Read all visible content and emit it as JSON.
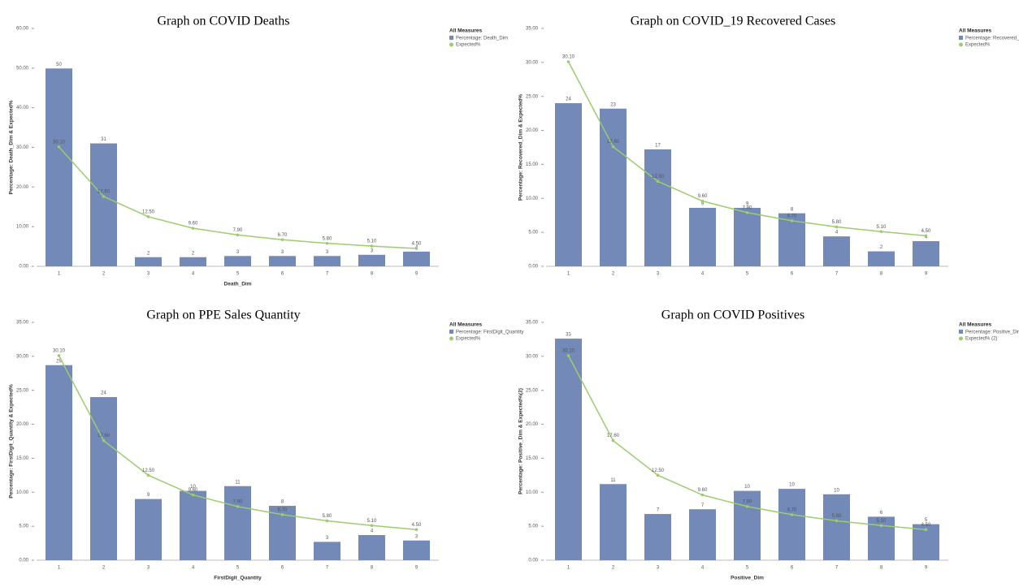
{
  "chart_data": [
    {
      "type": "combo",
      "title": "Graph on COVID Deaths",
      "x_label": "Death_Dim",
      "y_label": "Percentage: Death_Dim & Expected%",
      "legend_title": "All Measures",
      "categories": [
        "1",
        "2",
        "3",
        "4",
        "5",
        "6",
        "7",
        "8",
        "9"
      ],
      "series": [
        {
          "name": "Percentage: Death_Dim",
          "kind": "bar",
          "color": "#7389b8",
          "values": [
            49.9,
            31,
            2.3,
            2.3,
            2.6,
            2.6,
            2.6,
            2.9,
            3.7
          ],
          "value_labels": [
            "50",
            "31",
            "2",
            "2",
            "3",
            "3",
            "3",
            "3",
            "4"
          ]
        },
        {
          "name": "Expected%",
          "kind": "line",
          "color": "#9ccc6e",
          "values": [
            30.1,
            17.6,
            12.5,
            9.6,
            7.9,
            6.7,
            5.8,
            5.1,
            4.5
          ],
          "value_labels": [
            "30.10",
            "17.60",
            "12.50",
            "9.60",
            "7.90",
            "6.70",
            "5.80",
            "5.10",
            "4.50"
          ]
        }
      ],
      "ylim": [
        0,
        60
      ],
      "yticks": [
        {
          "value": 0,
          "label": "0.00"
        },
        {
          "value": 10,
          "label": "10.00"
        },
        {
          "value": 20,
          "label": "20.00"
        },
        {
          "value": 30,
          "label": "30.00"
        },
        {
          "value": 40,
          "label": "40.00"
        },
        {
          "value": 50,
          "label": "50.00"
        },
        {
          "value": 60,
          "label": "60.00"
        }
      ]
    },
    {
      "type": "combo",
      "title": "Graph on COVID_19 Recovered Cases",
      "y_label": "Percentage: Recovered_Dim & Expected%",
      "legend_title": "All Measures",
      "categories": [
        "1",
        "2",
        "3",
        "4",
        "5",
        "6",
        "7",
        "8",
        "9"
      ],
      "series": [
        {
          "name": "Percentage: Recovered_Dim",
          "kind": "bar",
          "color": "#7389b8",
          "values": [
            24,
            23.2,
            17.2,
            8.6,
            8.6,
            7.8,
            4.4,
            2.2,
            3.7
          ],
          "value_labels": [
            "24",
            "23",
            "17",
            "9",
            "9",
            "8",
            "4",
            "2",
            "4"
          ]
        },
        {
          "name": "Expected%",
          "kind": "line",
          "color": "#9ccc6e",
          "values": [
            30.1,
            17.6,
            12.5,
            9.6,
            7.9,
            6.7,
            5.8,
            5.1,
            4.5
          ],
          "value_labels": [
            "30.10",
            "17.60",
            "12.50",
            "9.60",
            "7.90",
            "6.70",
            "5.80",
            "5.10",
            "4.50"
          ]
        }
      ],
      "ylim": [
        0,
        35
      ],
      "yticks": [
        {
          "value": 0,
          "label": "0.00"
        },
        {
          "value": 5,
          "label": "5.00"
        },
        {
          "value": 10,
          "label": "10.00"
        },
        {
          "value": 15,
          "label": "15.00"
        },
        {
          "value": 20,
          "label": "20.00"
        },
        {
          "value": 25,
          "label": "25.00"
        },
        {
          "value": 30,
          "label": "30.00"
        },
        {
          "value": 35,
          "label": "35.00"
        }
      ]
    },
    {
      "type": "combo",
      "title": "Graph on PPE Sales Quantity",
      "x_label": "FirstDigit_Quantity",
      "y_label": "Percentage: FirstDigit_Quantity & Expected%",
      "legend_title": "All Measures",
      "categories": [
        "1",
        "2",
        "3",
        "4",
        "5",
        "6",
        "7",
        "8",
        "9"
      ],
      "series": [
        {
          "name": "Percentage: FirstDigit_Quantity",
          "kind": "bar",
          "color": "#7389b8",
          "values": [
            28.7,
            24,
            9,
            10.2,
            10.9,
            8,
            2.7,
            3.7,
            2.9
          ],
          "value_labels": [
            "29",
            "24",
            "9",
            "10",
            "11",
            "8",
            "3",
            "4",
            "3"
          ]
        },
        {
          "name": "Expected%",
          "kind": "line",
          "color": "#9ccc6e",
          "values": [
            30.1,
            17.6,
            12.5,
            9.6,
            7.9,
            6.7,
            5.8,
            5.1,
            4.5
          ],
          "value_labels": [
            "30.10",
            "17.60",
            "12.50",
            "9.60",
            "7.90",
            "6.70",
            "5.80",
            "5.10",
            "4.50"
          ]
        }
      ],
      "ylim": [
        0,
        35
      ],
      "yticks": [
        {
          "value": 0,
          "label": "0.00"
        },
        {
          "value": 5,
          "label": "5.00"
        },
        {
          "value": 10,
          "label": "10.00"
        },
        {
          "value": 15,
          "label": "15.00"
        },
        {
          "value": 20,
          "label": "20.00"
        },
        {
          "value": 25,
          "label": "25.00"
        },
        {
          "value": 30,
          "label": "30.00"
        },
        {
          "value": 35,
          "label": "35.00"
        }
      ]
    },
    {
      "type": "combo",
      "title": "Graph on COVID Positives",
      "x_label": "Positive_Dim",
      "y_label": "Percentage: Positive_Dim & Expected%(2)",
      "legend_title": "All Measures",
      "categories": [
        "1",
        "2",
        "3",
        "4",
        "5",
        "6",
        "7",
        "8",
        "9"
      ],
      "series": [
        {
          "name": "Percentage: Positive_Dim",
          "kind": "bar",
          "color": "#7389b8",
          "values": [
            32.6,
            11.2,
            6.8,
            7.5,
            10.2,
            10.5,
            9.7,
            6.4,
            5.3
          ],
          "value_labels": [
            "33",
            "11",
            "7",
            "7",
            "10",
            "10",
            "10",
            "6",
            "5"
          ]
        },
        {
          "name": "Expected% (2)",
          "kind": "line",
          "color": "#9ccc6e",
          "values": [
            30.1,
            17.6,
            12.5,
            9.6,
            7.9,
            6.7,
            5.8,
            5.1,
            4.5
          ],
          "value_labels": [
            "30.10",
            "17.60",
            "12.50",
            "9.60",
            "7.90",
            "6.70",
            "5.80",
            "5.10",
            "4.50"
          ]
        }
      ],
      "ylim": [
        0,
        35
      ],
      "yticks": [
        {
          "value": 0,
          "label": "0.00"
        },
        {
          "value": 5,
          "label": "5.00"
        },
        {
          "value": 10,
          "label": "10.00"
        },
        {
          "value": 15,
          "label": "15.00"
        },
        {
          "value": 20,
          "label": "20.00"
        },
        {
          "value": 25,
          "label": "25.00"
        },
        {
          "value": 30,
          "label": "30.00"
        },
        {
          "value": 35,
          "label": "35.00"
        }
      ]
    }
  ]
}
